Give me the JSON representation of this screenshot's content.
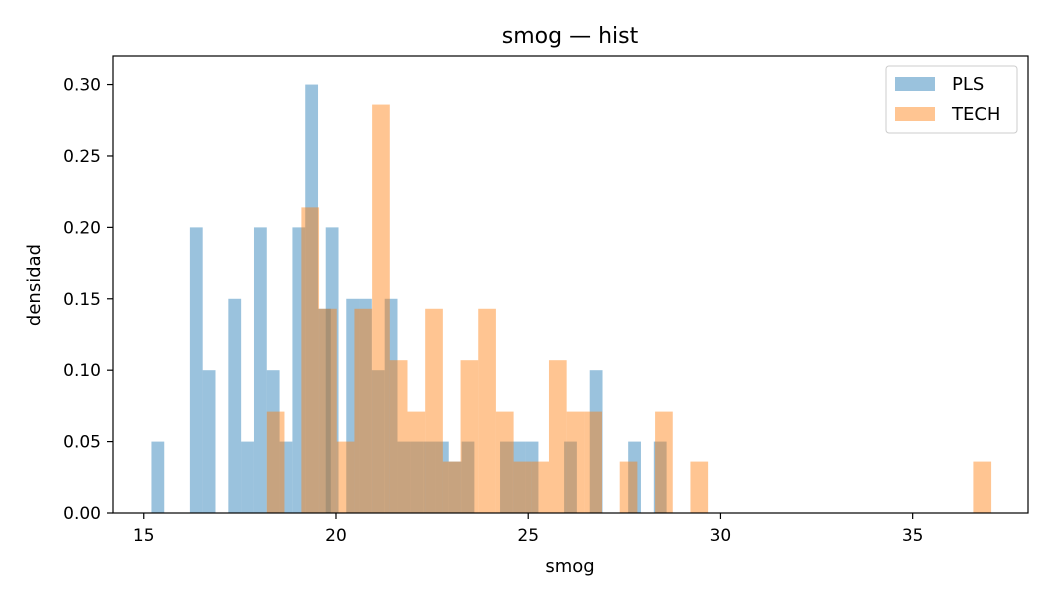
{
  "chart_data": {
    "type": "bar",
    "title": "smog — hist",
    "xlabel": "smog",
    "ylabel": "densidad",
    "xlim": [
      14.2,
      38.0
    ],
    "ylim": [
      0,
      0.32
    ],
    "xticks": [
      15,
      20,
      25,
      30,
      35
    ],
    "xtick_labels": [
      "15",
      "20",
      "25",
      "30",
      "35"
    ],
    "yticks": [
      0.0,
      0.05,
      0.1,
      0.15,
      0.2,
      0.25,
      0.3
    ],
    "ytick_labels": [
      "0.00",
      "0.05",
      "0.10",
      "0.15",
      "0.20",
      "0.25",
      "0.30"
    ],
    "grid": false,
    "legend_placement": "top-right",
    "series": [
      {
        "name": "PLS",
        "color": "#1f77b4",
        "alpha": 0.45,
        "bin_width": 0.333,
        "bins": [
          {
            "x0": 15.2,
            "y": 0.05
          },
          {
            "x0": 16.2,
            "y": 0.2
          },
          {
            "x0": 16.533,
            "y": 0.1
          },
          {
            "x0": 17.2,
            "y": 0.15
          },
          {
            "x0": 17.533,
            "y": 0.05
          },
          {
            "x0": 17.867,
            "y": 0.2
          },
          {
            "x0": 18.2,
            "y": 0.1
          },
          {
            "x0": 18.533,
            "y": 0.05
          },
          {
            "x0": 18.867,
            "y": 0.2
          },
          {
            "x0": 19.2,
            "y": 0.3
          },
          {
            "x0": 19.533,
            "y": 0.143
          },
          {
            "x0": 19.733,
            "y": 0.2
          },
          {
            "x0": 20.267,
            "y": 0.15
          },
          {
            "x0": 20.6,
            "y": 0.15
          },
          {
            "x0": 20.933,
            "y": 0.1
          },
          {
            "x0": 21.267,
            "y": 0.15
          },
          {
            "x0": 21.6,
            "y": 0.05
          },
          {
            "x0": 21.933,
            "y": 0.05
          },
          {
            "x0": 22.267,
            "y": 0.05
          },
          {
            "x0": 22.6,
            "y": 0.05
          },
          {
            "x0": 22.933,
            "y": 0.036
          },
          {
            "x0": 23.267,
            "y": 0.05
          },
          {
            "x0": 24.267,
            "y": 0.05
          },
          {
            "x0": 24.6,
            "y": 0.05
          },
          {
            "x0": 24.933,
            "y": 0.05
          },
          {
            "x0": 25.933,
            "y": 0.05
          },
          {
            "x0": 26.6,
            "y": 0.1
          },
          {
            "x0": 27.6,
            "y": 0.05
          },
          {
            "x0": 28.267,
            "y": 0.05
          }
        ]
      },
      {
        "name": "TECH",
        "color": "#ff7f0e",
        "alpha": 0.45,
        "bin_width": 0.46,
        "bins": [
          {
            "x0": 18.2,
            "y": 0.071
          },
          {
            "x0": 19.1,
            "y": 0.214
          },
          {
            "x0": 19.56,
            "y": 0.143
          },
          {
            "x0": 20.02,
            "y": 0.05
          },
          {
            "x0": 20.48,
            "y": 0.143
          },
          {
            "x0": 20.94,
            "y": 0.286
          },
          {
            "x0": 21.4,
            "y": 0.107
          },
          {
            "x0": 21.86,
            "y": 0.071
          },
          {
            "x0": 22.32,
            "y": 0.143
          },
          {
            "x0": 22.78,
            "y": 0.036
          },
          {
            "x0": 23.24,
            "y": 0.107
          },
          {
            "x0": 23.7,
            "y": 0.143
          },
          {
            "x0": 24.16,
            "y": 0.071
          },
          {
            "x0": 24.62,
            "y": 0.036
          },
          {
            "x0": 25.08,
            "y": 0.036
          },
          {
            "x0": 25.54,
            "y": 0.107
          },
          {
            "x0": 26.0,
            "y": 0.071
          },
          {
            "x0": 26.46,
            "y": 0.071
          },
          {
            "x0": 27.38,
            "y": 0.036
          },
          {
            "x0": 28.3,
            "y": 0.071
          },
          {
            "x0": 29.22,
            "y": 0.036
          },
          {
            "x0": 36.58,
            "y": 0.036
          }
        ]
      }
    ]
  }
}
